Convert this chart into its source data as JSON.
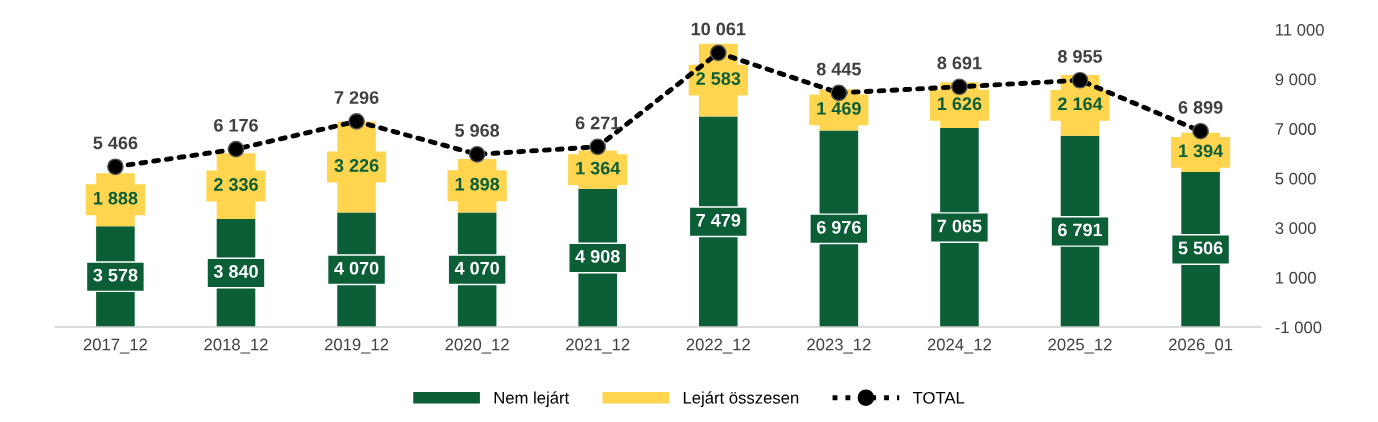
{
  "chart_data": {
    "type": "bar",
    "stacked": true,
    "categories": [
      "2017_12",
      "2018_12",
      "2019_12",
      "2020_12",
      "2021_12",
      "2022_12",
      "2023_12",
      "2024_12",
      "2025_12",
      "2026_01"
    ],
    "series": [
      {
        "name": "Nem lejárt",
        "color": "#0b5e36",
        "values": [
          3578,
          3840,
          4070,
          4070,
          4908,
          7479,
          6976,
          7065,
          6791,
          5506
        ]
      },
      {
        "name": "Lejárt összesen",
        "color": "#ffd54f",
        "values": [
          1888,
          2336,
          3226,
          1898,
          1364,
          2583,
          1469,
          1626,
          2164,
          1394
        ]
      },
      {
        "name": "TOTAL",
        "type": "line",
        "axis": "y2",
        "color": "#000000",
        "marker": "circle",
        "line_style": "dotted",
        "values": [
          5466,
          6176,
          7296,
          5968,
          6271,
          10061,
          8445,
          8691,
          8955,
          6899
        ]
      }
    ],
    "y2lim": [
      -1000,
      11000
    ],
    "y2ticks": [
      -1000,
      1000,
      3000,
      5000,
      7000,
      9000,
      11000
    ],
    "tick_labels": [
      "x",
      "y2"
    ],
    "data_labels": true,
    "grid": false,
    "legend": "bottom"
  }
}
